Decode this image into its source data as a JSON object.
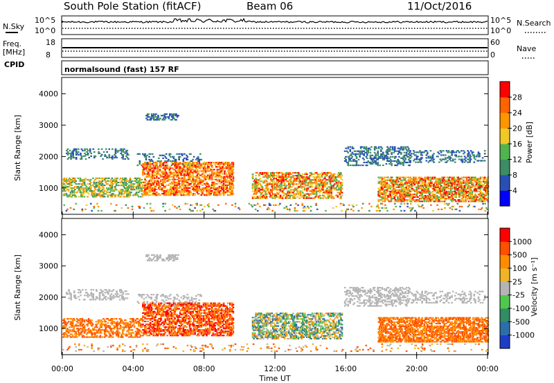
{
  "header": {
    "station": "South Pole Station (fitACF)",
    "beam": "Beam 06",
    "date": "11/Oct/2016"
  },
  "strip_panels": {
    "nsky_label": "N.Sky",
    "nsky_ticks": [
      "10^5",
      "10^0"
    ],
    "nsearch_label": "N.Search",
    "nsearch_ticks": [
      "10^5",
      "10^0"
    ],
    "freq_label": "Freq.",
    "freq_unit": "[MHz]",
    "freq_ticks": [
      "18",
      "8"
    ],
    "nave_label": "Nave",
    "nave_ticks": [
      "60",
      "0"
    ],
    "cpid_label": "CPID",
    "cpid_text": "normalsound (fast) 157 RF"
  },
  "chart_data": [
    {
      "type": "heatmap",
      "name": "power",
      "ylabel": "Slant Range [km]",
      "yticks": [
        "4000",
        "3000",
        "2000",
        "1000"
      ],
      "ylim": [
        180,
        4500
      ],
      "xlim": [
        0,
        24
      ],
      "colorbar_label": "Power [dB]",
      "colorbar_ticks": [
        "28",
        "24",
        "20",
        "16",
        "12",
        "8",
        "4"
      ],
      "colorbar_colors": [
        "#0000ff",
        "#2850b4",
        "#3c8c64",
        "#50b450",
        "#f0c828",
        "#ff9600",
        "#ff6400",
        "#ff0000"
      ]
    },
    {
      "type": "heatmap",
      "name": "velocity",
      "ylabel": "Slant Range [km]",
      "yticks": [
        "4000",
        "3000",
        "2000",
        "1000"
      ],
      "ylim": [
        180,
        4500
      ],
      "xlim": [
        0,
        24
      ],
      "colorbar_label": "Velocity [m s⁻¹]",
      "colorbar_ticks": [
        "1000",
        "500",
        "100",
        "25",
        "-25",
        "-100",
        "-500",
        "-1000"
      ],
      "colorbar_colors": [
        "#1e3cc8",
        "#2d6eaa",
        "#328c64",
        "#50c850",
        "#b4b4b4",
        "#f0b428",
        "#ff8c00",
        "#ff5000",
        "#ff0000"
      ]
    }
  ],
  "xaxis": {
    "label": "Time UT",
    "ticks": [
      "00:00",
      "04:00",
      "08:00",
      "12:00",
      "16:00",
      "20:00",
      "00:00"
    ]
  }
}
